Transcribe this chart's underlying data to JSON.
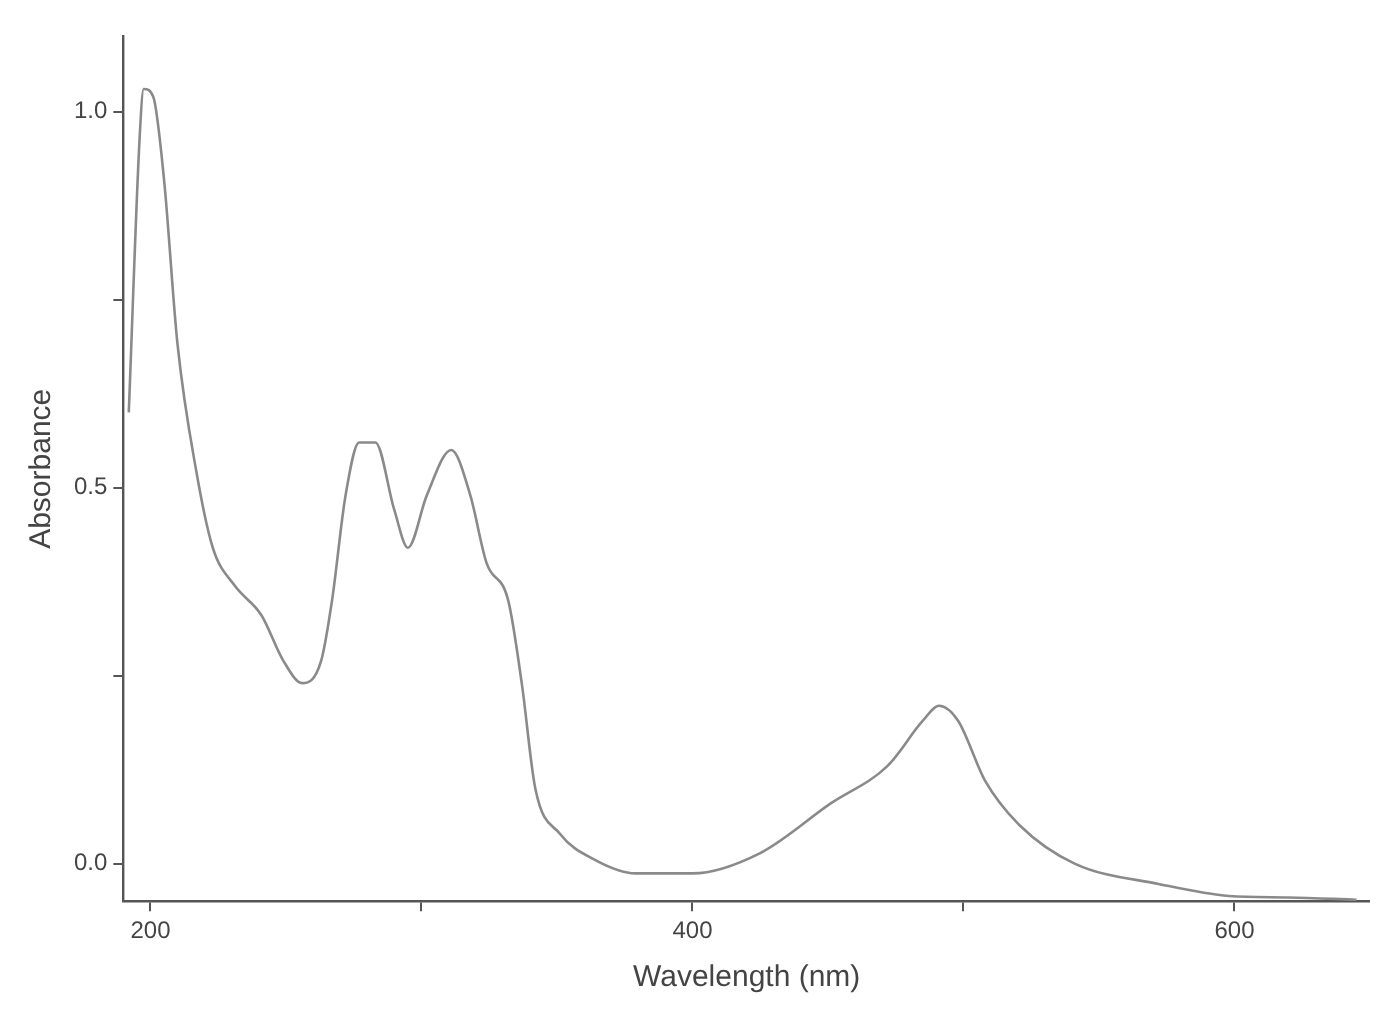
{
  "chart_data": {
    "type": "line",
    "xlabel": "Wavelength (nm)",
    "ylabel": "Absorbance",
    "xlim": [
      190,
      650
    ],
    "ylim": [
      -0.05,
      1.1
    ],
    "xticks": [
      200,
      {
        "value": 300,
        "label": null
      },
      400,
      {
        "value": 500,
        "label": null
      },
      600
    ],
    "yticks": [
      {
        "value": 0,
        "label": "0.0"
      },
      {
        "value": 0.25,
        "label": null
      },
      0.5,
      {
        "value": 0.75,
        "label": null
      },
      {
        "value": 1,
        "label": "1.0"
      }
    ],
    "grid": false,
    "legend": false,
    "marker": "none",
    "line_style": "solid",
    "series": [
      {
        "color": "#8a8a8a",
        "x": [
          192,
          196,
          197.5,
          201,
          205,
          210,
          217,
          223,
          231,
          241,
          249,
          256,
          263,
          267,
          272,
          277,
          283,
          290,
          295,
          302,
          311,
          318,
          324,
          332,
          337,
          342,
          351,
          364,
          379,
          400,
          425,
          451,
          472,
          485,
          491,
          498,
          508,
          521,
          541,
          572,
          598,
          620,
          645
        ],
        "values": [
          0.6,
          0.965,
          1.03,
          1.02,
          0.91,
          0.69,
          0.52,
          0.42,
          0.37,
          0.33,
          0.27,
          0.24,
          0.27,
          0.35,
          0.49,
          0.56,
          0.56,
          0.47,
          0.42,
          0.49,
          0.55,
          0.49,
          0.4,
          0.35,
          0.24,
          0.1,
          0.04,
          0.005,
          -0.013,
          -0.013,
          0.014,
          0.08,
          0.13,
          0.19,
          0.21,
          0.19,
          0.11,
          0.05,
          0.0,
          -0.027,
          -0.043,
          -0.045,
          -0.048
        ]
      }
    ]
  }
}
